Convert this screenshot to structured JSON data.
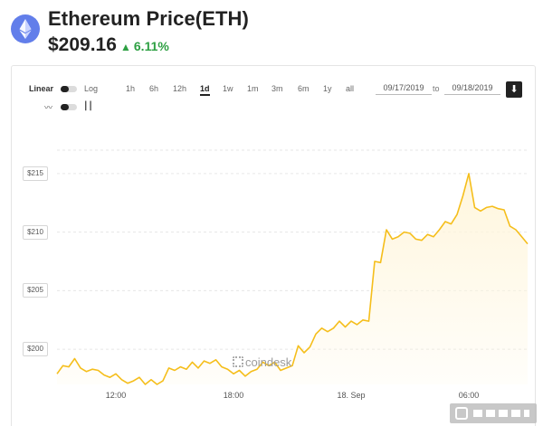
{
  "header": {
    "logo_icon": "ethereum-diamond-icon",
    "title": "Ethereum Price(ETH)",
    "price": "$209.16",
    "change": "6.11%",
    "change_color": "#2ea043"
  },
  "controls": {
    "scale_linear": "Linear",
    "scale_log": "Log",
    "line_mode_icon": "line-chart-icon",
    "candle_mode_icon": "candlestick-icon",
    "ranges": [
      "1h",
      "6h",
      "12h",
      "1d",
      "1w",
      "1m",
      "3m",
      "6m",
      "1y",
      "all"
    ],
    "active_range": "1d",
    "date_from": "09/17/2019",
    "date_to": "09/18/2019",
    "to_label": "to",
    "download_icon": "download-arrow-icon"
  },
  "watermark": "coindesk",
  "chart_data": {
    "type": "area",
    "title": "",
    "xlabel": "",
    "ylabel": "",
    "x_tick_labels": [
      "12:00",
      "18:00",
      "18. Sep",
      "06:00"
    ],
    "x_tick_hours": [
      3,
      9,
      15,
      21
    ],
    "y_tick_labels": [
      "$200",
      "$205",
      "$210",
      "$215"
    ],
    "y_ticks": [
      200,
      205,
      210,
      215
    ],
    "xlim": [
      0,
      24
    ],
    "ylim": [
      197,
      218
    ],
    "grid": true,
    "line_color": "#f5be1b",
    "fill_color": "#fff6dd",
    "hours": [
      0,
      0.3,
      0.6,
      0.9,
      1.2,
      1.5,
      1.8,
      2.1,
      2.4,
      2.7,
      3.0,
      3.3,
      3.6,
      3.9,
      4.2,
      4.5,
      4.8,
      5.1,
      5.4,
      5.7,
      6.0,
      6.3,
      6.6,
      6.9,
      7.2,
      7.5,
      7.8,
      8.1,
      8.4,
      8.7,
      9.0,
      9.3,
      9.6,
      9.9,
      10.2,
      10.5,
      10.8,
      11.1,
      11.4,
      11.7,
      12.0,
      12.3,
      12.6,
      12.9,
      13.2,
      13.5,
      13.8,
      14.1,
      14.4,
      14.7,
      15.0,
      15.3,
      15.6,
      15.9,
      16.2,
      16.5,
      16.8,
      17.1,
      17.4,
      17.7,
      18.0,
      18.3,
      18.6,
      18.9,
      19.2,
      19.5,
      19.8,
      20.1,
      20.4,
      20.7,
      21.0,
      21.3,
      21.6,
      21.9,
      22.2,
      22.5,
      22.8,
      23.1,
      23.4,
      23.7,
      24.0
    ],
    "values": [
      197.9,
      198.6,
      198.5,
      199.2,
      198.4,
      198.1,
      198.3,
      198.2,
      197.8,
      197.6,
      197.9,
      197.4,
      197.1,
      197.3,
      197.6,
      197.0,
      197.4,
      197.0,
      197.3,
      198.4,
      198.2,
      198.5,
      198.3,
      198.9,
      198.4,
      199.0,
      198.8,
      199.1,
      198.5,
      198.3,
      197.9,
      198.2,
      197.7,
      198.1,
      198.3,
      198.9,
      198.6,
      198.9,
      198.2,
      198.4,
      198.6,
      200.3,
      199.7,
      200.2,
      201.3,
      201.8,
      201.5,
      201.8,
      202.4,
      201.9,
      202.4,
      202.1,
      202.5,
      202.4,
      207.5,
      207.4,
      210.2,
      209.4,
      209.6,
      210.0,
      209.9,
      209.4,
      209.3,
      209.8,
      209.6,
      210.2,
      210.9,
      210.7,
      211.5,
      213.1,
      215.0,
      212.1,
      211.8,
      212.1,
      212.2,
      212.0,
      211.9,
      210.5,
      210.2,
      209.6,
      209.0
    ]
  }
}
